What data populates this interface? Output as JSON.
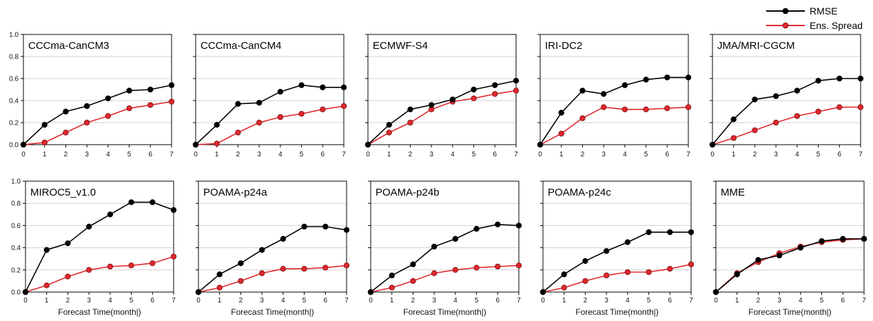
{
  "legend": {
    "entries": [
      {
        "label": "RMSE",
        "color": "#000000"
      },
      {
        "label": "Ens. Spread",
        "color": "#e0282e"
      }
    ]
  },
  "chart_data": [
    {
      "type": "line",
      "title": "CCCma-CanCM3",
      "xlabel": "",
      "x": [
        0,
        1,
        2,
        3,
        4,
        5,
        6,
        7
      ],
      "ylim": [
        0,
        1.0
      ],
      "yticks": [
        "0.0",
        "0.2",
        "0.4",
        "0.6",
        "0.8",
        "1.0"
      ],
      "xticks": [
        "0",
        "1",
        "2",
        "3",
        "4",
        "5",
        "6",
        "7"
      ],
      "series": [
        {
          "name": "RMSE",
          "values": [
            0.0,
            0.18,
            0.3,
            0.35,
            0.42,
            0.49,
            0.5,
            0.54
          ]
        },
        {
          "name": "Ens. Spread",
          "values": [
            0.0,
            0.02,
            0.11,
            0.2,
            0.26,
            0.33,
            0.36,
            0.39
          ]
        }
      ]
    },
    {
      "type": "line",
      "title": "CCCma-CanCM4",
      "xlabel": "",
      "x": [
        0,
        1,
        2,
        3,
        4,
        5,
        6,
        7
      ],
      "ylim": [
        0,
        1.0
      ],
      "yticks": [],
      "xticks": [
        "0",
        "1",
        "2",
        "3",
        "4",
        "5",
        "6",
        "7"
      ],
      "series": [
        {
          "name": "RMSE",
          "values": [
            0.0,
            0.18,
            0.37,
            0.38,
            0.48,
            0.54,
            0.52,
            0.52
          ]
        },
        {
          "name": "Ens. Spread",
          "values": [
            0.0,
            0.01,
            0.11,
            0.2,
            0.25,
            0.28,
            0.32,
            0.35
          ]
        }
      ]
    },
    {
      "type": "line",
      "title": "ECMWF-S4",
      "xlabel": "",
      "x": [
        0,
        1,
        2,
        3,
        4,
        5,
        6,
        7
      ],
      "ylim": [
        0,
        1.0
      ],
      "yticks": [],
      "xticks": [
        "0",
        "1",
        "2",
        "3",
        "4",
        "5",
        "6",
        "7"
      ],
      "series": [
        {
          "name": "RMSE",
          "values": [
            0.0,
            0.18,
            0.32,
            0.36,
            0.41,
            0.5,
            0.54,
            0.58
          ]
        },
        {
          "name": "Ens. Spread",
          "values": [
            0.0,
            0.11,
            0.2,
            0.32,
            0.39,
            0.42,
            0.46,
            0.49
          ]
        }
      ]
    },
    {
      "type": "line",
      "title": "IRI-DC2",
      "xlabel": "",
      "x": [
        0,
        1,
        2,
        3,
        4,
        5,
        6,
        7
      ],
      "ylim": [
        0,
        1.0
      ],
      "yticks": [],
      "xticks": [
        "0",
        "1",
        "2",
        "3",
        "4",
        "5",
        "6",
        "7"
      ],
      "series": [
        {
          "name": "RMSE",
          "values": [
            0.0,
            0.29,
            0.49,
            0.46,
            0.54,
            0.59,
            0.61,
            0.61
          ]
        },
        {
          "name": "Ens. Spread",
          "values": [
            0.0,
            0.1,
            0.24,
            0.34,
            0.32,
            0.32,
            0.33,
            0.34
          ]
        }
      ]
    },
    {
      "type": "line",
      "title": "JMA/MRI-CGCM",
      "xlabel": "",
      "x": [
        0,
        1,
        2,
        3,
        4,
        5,
        6,
        7
      ],
      "ylim": [
        0,
        1.0
      ],
      "yticks": [],
      "xticks": [
        "0",
        "1",
        "2",
        "3",
        "4",
        "5",
        "6",
        "7"
      ],
      "series": [
        {
          "name": "RMSE",
          "values": [
            0.0,
            0.23,
            0.41,
            0.44,
            0.49,
            0.58,
            0.6,
            0.6
          ]
        },
        {
          "name": "Ens. Spread",
          "values": [
            0.0,
            0.06,
            0.13,
            0.2,
            0.26,
            0.3,
            0.34,
            0.34
          ]
        }
      ]
    },
    {
      "type": "line",
      "title": "MIROC5_v1.0",
      "xlabel": "Forecast Time(month|)",
      "x": [
        0,
        1,
        2,
        3,
        4,
        5,
        6,
        7
      ],
      "ylim": [
        0,
        1.0
      ],
      "yticks": [
        "0.0",
        "0.2",
        "0.4",
        "0.6",
        "0.8",
        "1.0"
      ],
      "xticks": [
        "0",
        "1",
        "2",
        "3",
        "4",
        "5",
        "6",
        "7"
      ],
      "series": [
        {
          "name": "RMSE",
          "values": [
            0.0,
            0.38,
            0.44,
            0.59,
            0.7,
            0.81,
            0.81,
            0.74
          ]
        },
        {
          "name": "Ens. Spread",
          "values": [
            0.0,
            0.06,
            0.14,
            0.2,
            0.23,
            0.24,
            0.26,
            0.32
          ]
        }
      ]
    },
    {
      "type": "line",
      "title": "POAMA-p24a",
      "xlabel": "Forecast Time(month|)",
      "x": [
        0,
        1,
        2,
        3,
        4,
        5,
        6,
        7
      ],
      "ylim": [
        0,
        1.0
      ],
      "yticks": [],
      "xticks": [
        "0",
        "1",
        "2",
        "3",
        "4",
        "5",
        "6",
        "7"
      ],
      "series": [
        {
          "name": "RMSE",
          "values": [
            0.0,
            0.16,
            0.26,
            0.38,
            0.48,
            0.59,
            0.59,
            0.56
          ]
        },
        {
          "name": "Ens. Spread",
          "values": [
            0.0,
            0.04,
            0.1,
            0.17,
            0.21,
            0.21,
            0.22,
            0.24
          ]
        }
      ]
    },
    {
      "type": "line",
      "title": "POAMA-p24b",
      "xlabel": "Forecast Time(month|)",
      "x": [
        0,
        1,
        2,
        3,
        4,
        5,
        6,
        7
      ],
      "ylim": [
        0,
        1.0
      ],
      "yticks": [],
      "xticks": [
        "0",
        "1",
        "2",
        "3",
        "4",
        "5",
        "6",
        "7"
      ],
      "series": [
        {
          "name": "RMSE",
          "values": [
            0.0,
            0.15,
            0.25,
            0.41,
            0.48,
            0.57,
            0.61,
            0.6
          ]
        },
        {
          "name": "Ens. Spread",
          "values": [
            0.0,
            0.04,
            0.1,
            0.17,
            0.2,
            0.22,
            0.23,
            0.24
          ]
        }
      ]
    },
    {
      "type": "line",
      "title": "POAMA-p24c",
      "xlabel": "Forecast Time(month|)",
      "x": [
        0,
        1,
        2,
        3,
        4,
        5,
        6,
        7
      ],
      "ylim": [
        0,
        1.0
      ],
      "yticks": [],
      "xticks": [
        "0",
        "1",
        "2",
        "3",
        "4",
        "5",
        "6",
        "7"
      ],
      "series": [
        {
          "name": "RMSE",
          "values": [
            0.0,
            0.16,
            0.28,
            0.37,
            0.45,
            0.54,
            0.54,
            0.54
          ]
        },
        {
          "name": "Ens. Spread",
          "values": [
            0.0,
            0.04,
            0.1,
            0.15,
            0.18,
            0.18,
            0.21,
            0.25
          ]
        }
      ]
    },
    {
      "type": "line",
      "title": "MME",
      "xlabel": "Forecast Time(month|)",
      "x": [
        0,
        1,
        2,
        3,
        4,
        5,
        6,
        7
      ],
      "ylim": [
        0,
        1.0
      ],
      "yticks": [],
      "xticks": [
        "0",
        "1",
        "2",
        "3",
        "4",
        "5",
        "6",
        "7"
      ],
      "series": [
        {
          "name": "RMSE",
          "values": [
            0.0,
            0.16,
            0.29,
            0.33,
            0.4,
            0.46,
            0.48,
            0.48
          ]
        },
        {
          "name": "Ens. Spread",
          "values": [
            0.0,
            0.17,
            0.27,
            0.35,
            0.41,
            0.45,
            0.47,
            0.48
          ]
        }
      ]
    }
  ],
  "style": {
    "rmse_color": "#000000",
    "spread_color": "#e0282e",
    "grid": true
  }
}
